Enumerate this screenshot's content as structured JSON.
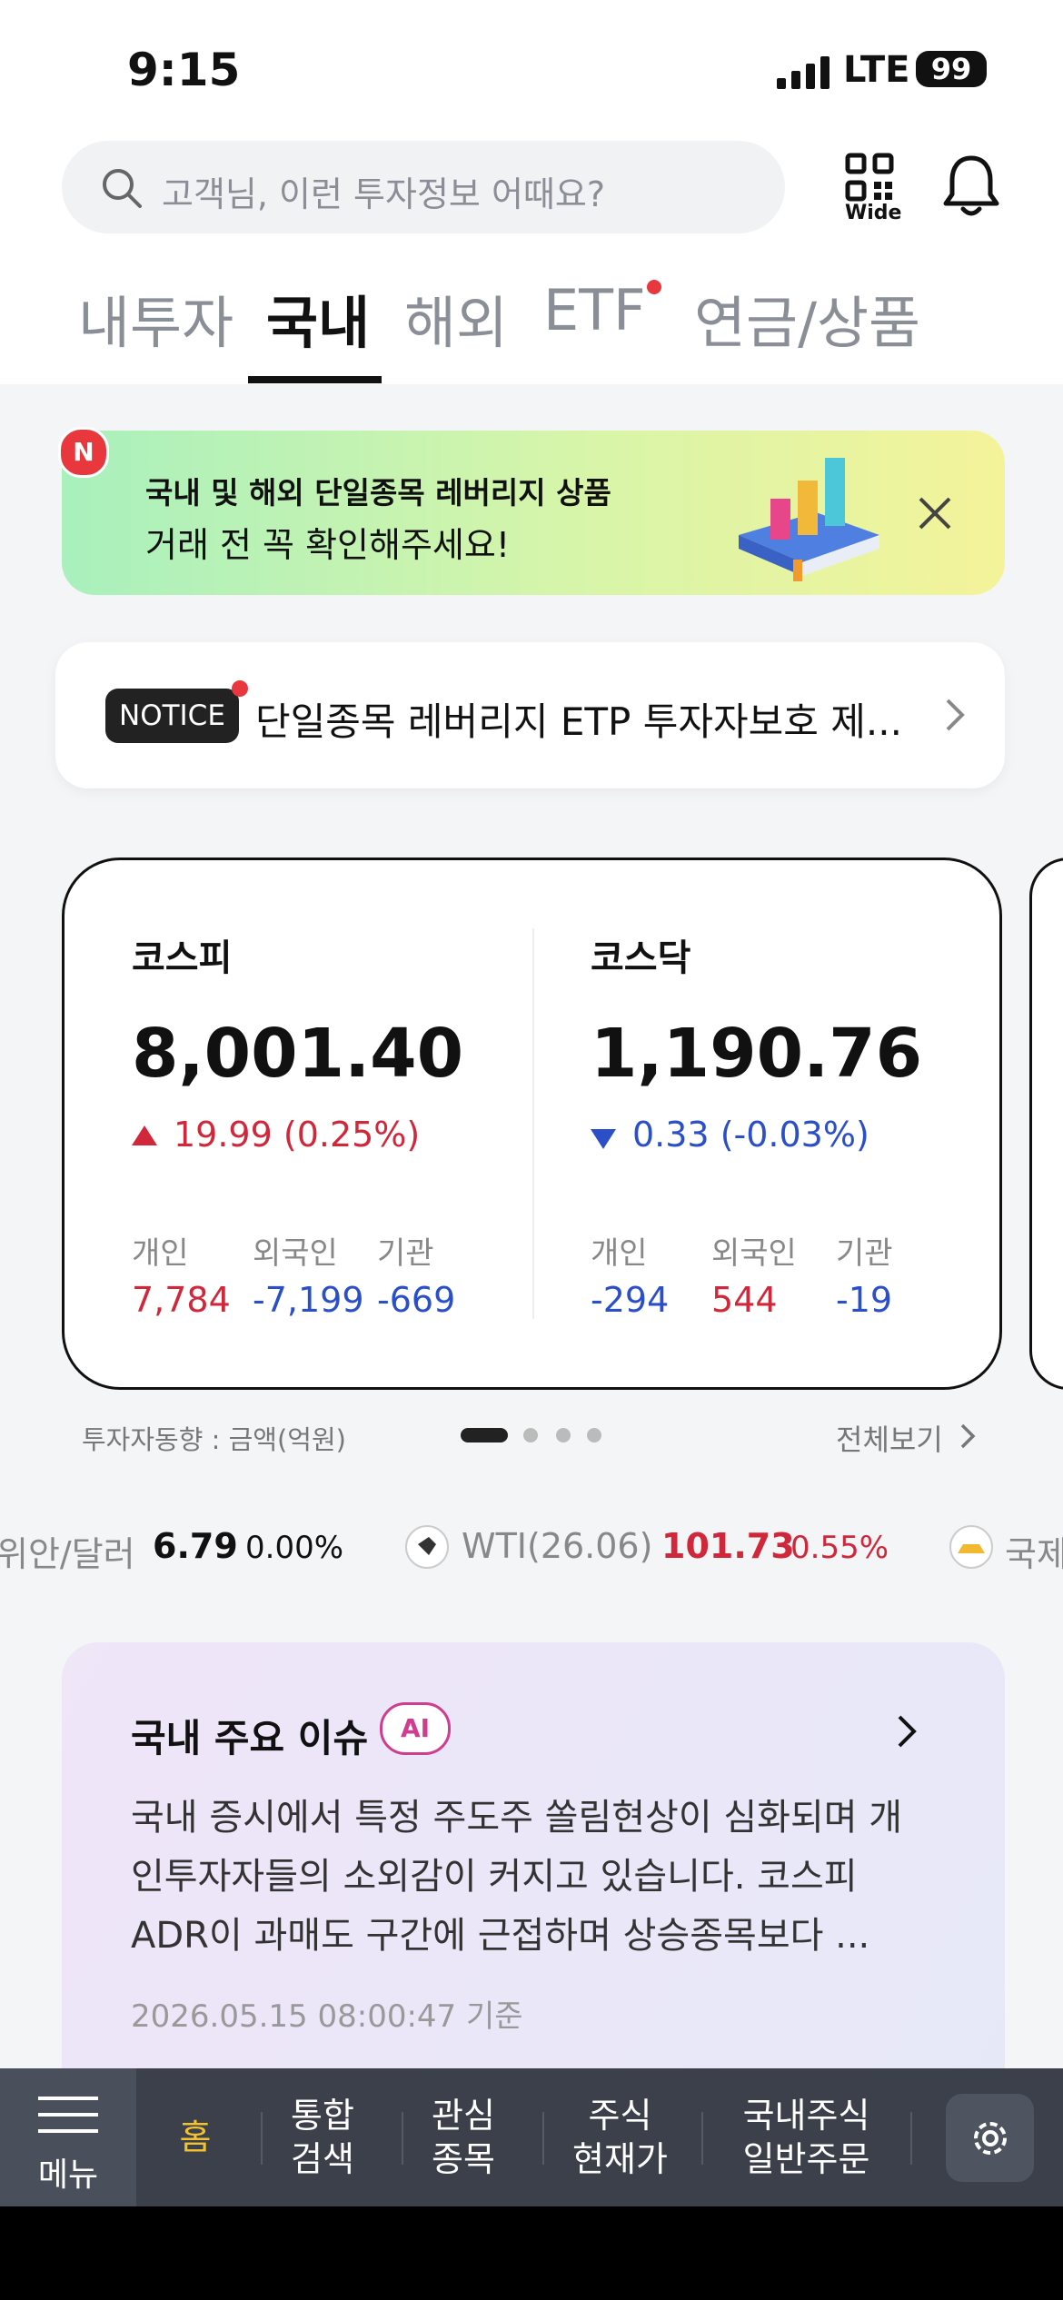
{
  "status_bar": {
    "time": "9:15",
    "network": "LTE",
    "battery": "99"
  },
  "search": {
    "placeholder": "고객님, 이런 투자정보 어때요?",
    "qr_label": "Wide"
  },
  "tabs": [
    "내투자",
    "국내",
    "해외",
    "ETF",
    "연금/상품"
  ],
  "active_tab": 1,
  "banner": {
    "badge": "N",
    "line1": "국내 및 해외 단일종목 레버리지 상품",
    "line2": "거래 전 꼭 확인해주세요!"
  },
  "notice": {
    "badge": "NOTICE",
    "text": "단일종목 레버리지 ETP 투자자보호 제..."
  },
  "indices": [
    {
      "name": "코스피",
      "value": "8,001.40",
      "change": "19.99 (0.25%)",
      "direction": "up",
      "investors": [
        {
          "label": "개인",
          "value": "7,784"
        },
        {
          "label": "외국인",
          "value": "-7,199"
        },
        {
          "label": "기관",
          "value": "-669"
        }
      ]
    },
    {
      "name": "코스닥",
      "value": "1,190.76",
      "change": "0.33 (-0.03%)",
      "direction": "down",
      "investors": [
        {
          "label": "개인",
          "value": "-294"
        },
        {
          "label": "외국인",
          "value": "544"
        },
        {
          "label": "기관",
          "value": "-19"
        }
      ]
    }
  ],
  "investor_trend": {
    "caption": "투자자동향 : 금액(억원)",
    "view_all": "전체보기"
  },
  "ticker": [
    {
      "name": "위안/달러",
      "value": "6.79",
      "change": "0.00%",
      "direction": "flat"
    },
    {
      "name": "WTI(26.06)",
      "value": "101.73",
      "change": "0.55%",
      "direction": "up"
    },
    {
      "name": "국제"
    }
  ],
  "issue": {
    "title": "국내 주요 이슈",
    "badge": "AI",
    "lines": [
      "국내 증시에서 특정 주도주 쏠림현상이 심화되며 개",
      "인투자자들의 소외감이 커지고 있습니다. 코스피",
      "ADR이 과매도 구간에 근접하며 상승종목보다 ..."
    ],
    "timestamp": "2026.05.15 08:00:47 기준"
  },
  "bottom_nav": {
    "menu": "메뉴",
    "items": [
      [
        "홈"
      ],
      [
        "통합",
        "검색"
      ],
      [
        "관심",
        "종목"
      ],
      [
        "주식",
        "현재가"
      ],
      [
        "국내주식",
        "일반주문"
      ]
    ]
  }
}
